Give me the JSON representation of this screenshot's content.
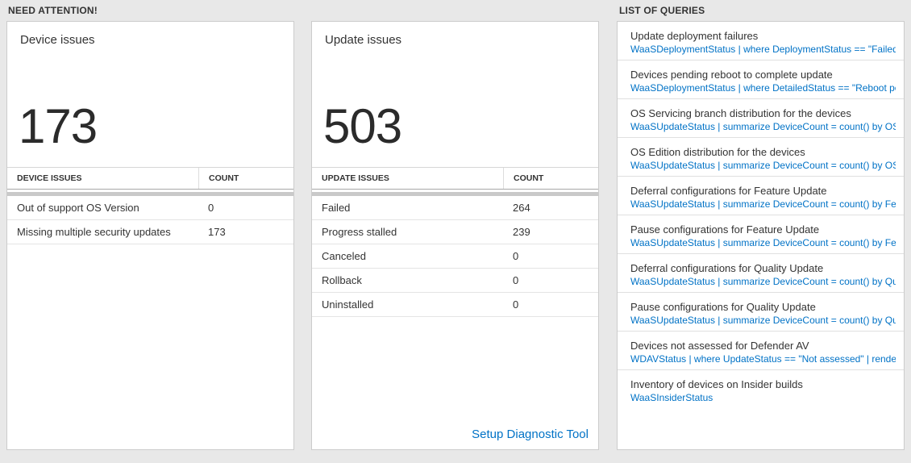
{
  "headers": {
    "need_attention": "NEED ATTENTION!",
    "list_of_queries": "LIST OF QUERIES"
  },
  "colors": {
    "link_blue": "#0072c6",
    "text_dark": "#333333",
    "page_background": "#e8e8e8"
  },
  "cards": [
    {
      "title": "Device issues",
      "big_number": "173",
      "table": {
        "headers": [
          "DEVICE ISSUES",
          "COUNT"
        ],
        "rows": [
          {
            "label": "Out of support OS Version",
            "count": "0"
          },
          {
            "label": "Missing multiple security updates",
            "count": "173"
          }
        ]
      }
    },
    {
      "title": "Update issues",
      "big_number": "503",
      "table": {
        "headers": [
          "UPDATE ISSUES",
          "COUNT"
        ],
        "rows": [
          {
            "label": "Failed",
            "count": "264"
          },
          {
            "label": "Progress stalled",
            "count": "239"
          },
          {
            "label": "Canceled",
            "count": "0"
          },
          {
            "label": "Rollback",
            "count": "0"
          },
          {
            "label": "Uninstalled",
            "count": "0"
          }
        ]
      },
      "footer_link": "Setup Diagnostic Tool"
    }
  ],
  "queries": {
    "items": [
      {
        "title": "Update deployment failures",
        "query": "WaaSDeploymentStatus | where DeploymentStatus == \"Failed\" |..."
      },
      {
        "title": "Devices pending reboot to complete update",
        "query": "WaaSDeploymentStatus | where DetailedStatus == \"Reboot pend..."
      },
      {
        "title": "OS Servicing branch distribution for the devices",
        "query": "WaaSUpdateStatus | summarize DeviceCount = count() by OSSer..."
      },
      {
        "title": "OS Edition distribution for the devices",
        "query": "WaaSUpdateStatus | summarize DeviceCount = count() by OSEdit..."
      },
      {
        "title": "Deferral configurations for Feature Update",
        "query": "WaaSUpdateStatus | summarize DeviceCount = count() by Featur..."
      },
      {
        "title": "Pause configurations for Feature Update",
        "query": "WaaSUpdateStatus | summarize DeviceCount = count() by Featur..."
      },
      {
        "title": "Deferral configurations for Quality Update",
        "query": "WaaSUpdateStatus | summarize DeviceCount = count() by Qualit..."
      },
      {
        "title": "Pause configurations for Quality Update",
        "query": "WaaSUpdateStatus | summarize DeviceCount = count() by Qualit..."
      },
      {
        "title": "Devices not assessed for Defender AV",
        "query": "WDAVStatus | where UpdateStatus == \"Not assessed\" | render ta..."
      },
      {
        "title": "Inventory of devices on Insider builds",
        "query": "WaaSInsiderStatus"
      }
    ]
  }
}
